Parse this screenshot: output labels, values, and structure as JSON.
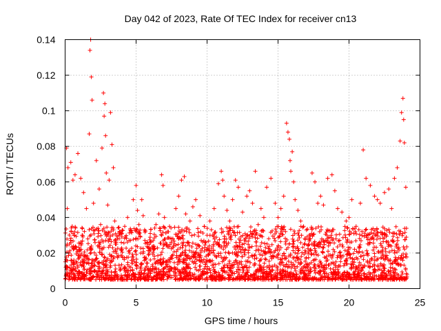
{
  "chart_data": {
    "type": "scatter",
    "title": "Day 042 of 2023, Rate Of TEC Index for receiver cn13",
    "xlabel": "GPS time / hours",
    "ylabel": "ROTI / TECUs",
    "xlim": [
      0,
      25
    ],
    "ylim": [
      0,
      0.14
    ],
    "xticks": [
      0,
      5,
      10,
      15,
      20,
      25
    ],
    "yticks": [
      0,
      0.02,
      0.04,
      0.06,
      0.08,
      0.1,
      0.12,
      0.14
    ],
    "ytick_labels": [
      "0",
      "0.02",
      "0.04",
      "0.06",
      "0.08",
      "0.1",
      "0.12",
      "0.14"
    ],
    "grid": true,
    "marker": "+",
    "color": "#ff0000",
    "series": [
      {
        "x": [
          0.05,
          0.1,
          0.15,
          0.2,
          0.3,
          0.4,
          0.5,
          0.55,
          0.6,
          0.7,
          0.8,
          0.9,
          1.0,
          1.1,
          1.2,
          1.3,
          1.4,
          1.5,
          1.6,
          1.7,
          1.75,
          1.8,
          1.85,
          1.9,
          2.0,
          2.1,
          2.2,
          2.3,
          2.4,
          2.5,
          2.6,
          2.7,
          2.75,
          2.8,
          2.85,
          2.9,
          3.0,
          3.1,
          3.2,
          3.3,
          3.4,
          3.5,
          3.6,
          3.8,
          4.0,
          4.2,
          4.4,
          4.6,
          4.8,
          5.0,
          5.1,
          5.2,
          5.3,
          5.4,
          5.5,
          5.6,
          5.8,
          6.0,
          6.2,
          6.4,
          6.6,
          6.8,
          6.9,
          7.0,
          7.2,
          7.5,
          7.8,
          8.0,
          8.2,
          8.4,
          8.5,
          8.6,
          8.8,
          9.0,
          9.2,
          9.5,
          9.8,
          10.0,
          10.2,
          10.5,
          10.8,
          11.0,
          11.1,
          11.2,
          11.4,
          11.6,
          11.8,
          12.0,
          12.2,
          12.5,
          12.8,
          13.0,
          13.2,
          13.4,
          13.6,
          13.8,
          14.0,
          14.2,
          14.5,
          14.8,
          15.0,
          15.2,
          15.4,
          15.6,
          15.7,
          15.8,
          15.85,
          15.9,
          16.0,
          16.1,
          16.2,
          16.4,
          16.6,
          16.8,
          17.0,
          17.2,
          17.4,
          17.6,
          17.8,
          18.0,
          18.2,
          18.5,
          18.8,
          19.0,
          19.2,
          19.5,
          19.8,
          20.0,
          20.2,
          20.5,
          20.8,
          21.0,
          21.2,
          21.5,
          21.8,
          22.0,
          22.2,
          22.5,
          22.8,
          23.0,
          23.2,
          23.4,
          23.6,
          23.7,
          23.8,
          23.85,
          23.9,
          24.0
        ],
        "y": [
          0.012,
          0.079,
          0.045,
          0.068,
          0.025,
          0.071,
          0.035,
          0.061,
          0.014,
          0.064,
          0.022,
          0.076,
          0.018,
          0.062,
          0.03,
          0.054,
          0.016,
          0.045,
          0.028,
          0.087,
          0.134,
          0.14,
          0.119,
          0.106,
          0.048,
          0.033,
          0.072,
          0.024,
          0.056,
          0.036,
          0.079,
          0.11,
          0.097,
          0.104,
          0.086,
          0.065,
          0.047,
          0.061,
          0.099,
          0.081,
          0.068,
          0.038,
          0.025,
          0.03,
          0.022,
          0.035,
          0.04,
          0.033,
          0.05,
          0.058,
          0.044,
          0.036,
          0.029,
          0.05,
          0.041,
          0.033,
          0.026,
          0.031,
          0.027,
          0.036,
          0.042,
          0.064,
          0.058,
          0.04,
          0.032,
          0.028,
          0.045,
          0.052,
          0.061,
          0.063,
          0.042,
          0.034,
          0.038,
          0.046,
          0.05,
          0.041,
          0.035,
          0.03,
          0.038,
          0.045,
          0.059,
          0.066,
          0.061,
          0.052,
          0.044,
          0.038,
          0.05,
          0.061,
          0.057,
          0.043,
          0.052,
          0.055,
          0.048,
          0.066,
          0.036,
          0.045,
          0.04,
          0.057,
          0.062,
          0.048,
          0.04,
          0.045,
          0.052,
          0.093,
          0.088,
          0.084,
          0.072,
          0.066,
          0.077,
          0.06,
          0.05,
          0.044,
          0.038,
          0.035,
          0.033,
          0.03,
          0.065,
          0.06,
          0.048,
          0.052,
          0.047,
          0.062,
          0.064,
          0.055,
          0.045,
          0.043,
          0.038,
          0.04,
          0.05,
          0.035,
          0.048,
          0.078,
          0.062,
          0.058,
          0.052,
          0.05,
          0.048,
          0.054,
          0.056,
          0.045,
          0.062,
          0.068,
          0.083,
          0.099,
          0.107,
          0.095,
          0.082,
          0.057
        ]
      }
    ]
  }
}
